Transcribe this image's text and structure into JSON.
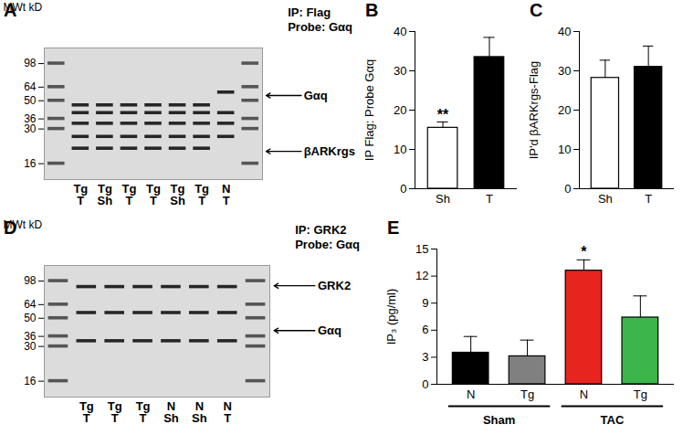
{
  "chart_data": [
    {
      "type": "blot",
      "title": "A",
      "annotations": [
        "IP: Flag",
        "Probe: Gαq"
      ],
      "ylabel": "MWt kD",
      "log": "y",
      "ylim": [
        12,
        130
      ],
      "yticks": [
        98,
        64,
        50,
        36,
        30,
        16
      ],
      "lanes": [
        {
          "top": "Tg",
          "bottom": "T",
          "bands": [
            46,
            40,
            33,
            26,
            21
          ]
        },
        {
          "top": "Tg",
          "bottom": "Sh",
          "bands": [
            46,
            40,
            33,
            26,
            21
          ]
        },
        {
          "top": "Tg",
          "bottom": "T",
          "bands": [
            46,
            40,
            33,
            26,
            21
          ]
        },
        {
          "top": "Tg",
          "bottom": "T",
          "bands": [
            46,
            40,
            33,
            26,
            21
          ]
        },
        {
          "top": "Tg",
          "bottom": "Sh",
          "bands": [
            46,
            40,
            33,
            26,
            21
          ]
        },
        {
          "top": "Tg",
          "bottom": "T",
          "bands": [
            46,
            40,
            33,
            26,
            21
          ]
        },
        {
          "top": "N",
          "bottom": "T",
          "bands": [
            58,
            40,
            33,
            26
          ]
        }
      ],
      "arrows": [
        {
          "label": "Gαq",
          "kd": 55
        },
        {
          "label": "βARKrgs",
          "kd": 20
        }
      ]
    },
    {
      "type": "bar",
      "title": "B",
      "categories": [
        "Sh",
        "T"
      ],
      "values": [
        15.5,
        33.5
      ],
      "errors": [
        1.5,
        5
      ],
      "colors": [
        "#ffffff",
        "#000000"
      ],
      "ylabel": "IP Flag: Probe Gαq",
      "ylim": [
        0,
        40
      ],
      "yticks": [
        0,
        10,
        20,
        30,
        40
      ],
      "annotations": [
        {
          "index": 0,
          "text": "**"
        }
      ]
    },
    {
      "type": "bar",
      "title": "C",
      "categories": [
        "Sh",
        "T"
      ],
      "values": [
        28.2,
        31
      ],
      "errors": [
        4.5,
        5.3
      ],
      "colors": [
        "#ffffff",
        "#000000"
      ],
      "ylabel": "IP'd βARKrgs-Flag",
      "ylim": [
        0,
        40
      ],
      "yticks": [
        0,
        10,
        20,
        30,
        40
      ]
    },
    {
      "type": "blot",
      "title": "D",
      "annotations": [
        "IP: GRK2",
        "Probe: Gαq"
      ],
      "ylabel": "MWt kD",
      "log": "y",
      "ylim": [
        12,
        130
      ],
      "yticks": [
        98,
        64,
        50,
        36,
        30,
        16
      ],
      "lanes": [
        {
          "top": "Tg",
          "bottom": "T",
          "bands": [
            88,
            55,
            33
          ]
        },
        {
          "top": "Tg",
          "bottom": "T",
          "bands": [
            88,
            55,
            33
          ]
        },
        {
          "top": "Tg",
          "bottom": "T",
          "bands": [
            88,
            55,
            33
          ]
        },
        {
          "top": "N",
          "bottom": "Sh",
          "bands": [
            88,
            55,
            33
          ]
        },
        {
          "top": "N",
          "bottom": "Sh",
          "bands": [
            88,
            55,
            33
          ]
        },
        {
          "top": "N",
          "bottom": "T",
          "bands": [
            88,
            55,
            33
          ]
        }
      ],
      "arrows": [
        {
          "label": "GRK2",
          "kd": 90
        },
        {
          "label": "Gαq",
          "kd": 40
        }
      ]
    },
    {
      "type": "bar",
      "title": "E",
      "categories": [
        "N",
        "Tg",
        "N",
        "Tg"
      ],
      "values": [
        3.5,
        3.1,
        12.6,
        7.4
      ],
      "errors": [
        1.8,
        1.8,
        1.2,
        2.4
      ],
      "colors": [
        "#000000",
        "#808080",
        "#e8241f",
        "#3cb54a"
      ],
      "ylabel": "IP₃ (pg/ml)",
      "ylim": [
        0,
        15
      ],
      "yticks": [
        0,
        3,
        6,
        9,
        12,
        15
      ],
      "groups": [
        {
          "label": "Sham",
          "indices": [
            0,
            1
          ]
        },
        {
          "label": "TAC",
          "indices": [
            2,
            3
          ]
        }
      ],
      "annotations": [
        {
          "index": 2,
          "text": "*"
        }
      ]
    }
  ]
}
